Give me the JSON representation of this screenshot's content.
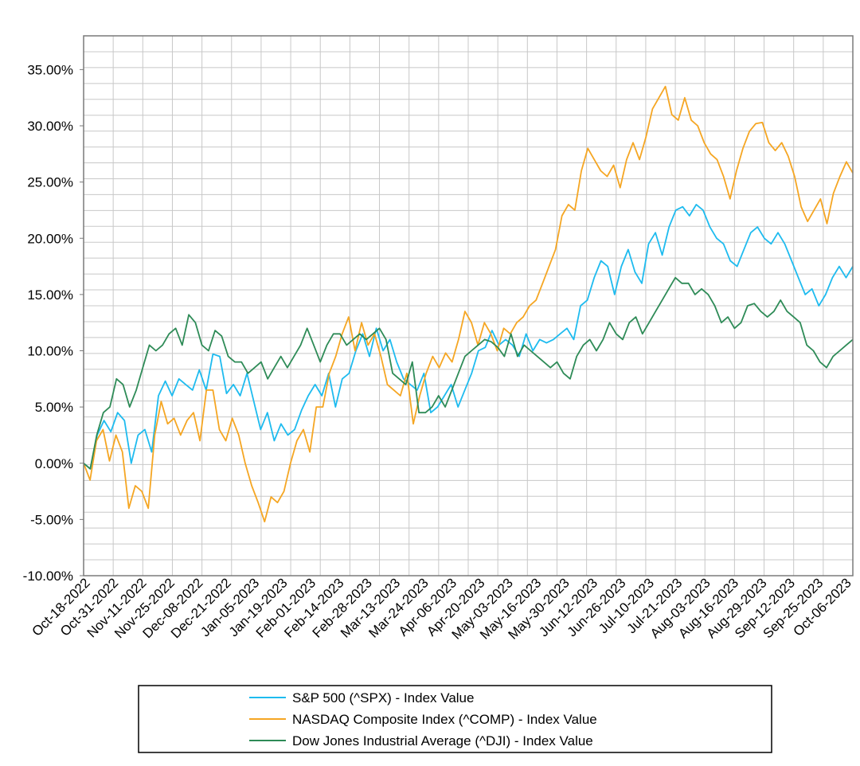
{
  "chart_data": {
    "type": "line",
    "title": "",
    "xlabel": "",
    "ylabel": "",
    "ylim": [
      -10,
      38
    ],
    "grid": true,
    "legend_position": "bottom",
    "y_ticks": [
      -10,
      -5,
      0,
      5,
      10,
      15,
      20,
      25,
      30,
      35
    ],
    "y_tick_labels": [
      "-10.00%",
      "-5.00%",
      "0.00%",
      "5.00%",
      "10.00%",
      "15.00%",
      "20.00%",
      "25.00%",
      "30.00%",
      "35.00%"
    ],
    "x_tick_labels": [
      "Oct-18-2022",
      "Oct-31-2022",
      "Nov-11-2022",
      "Nov-25-2022",
      "Dec-08-2022",
      "Dec-21-2022",
      "Jan-05-2023",
      "Jan-19-2023",
      "Feb-01-2023",
      "Feb-14-2023",
      "Feb-28-2023",
      "Mar-13-2023",
      "Mar-24-2023",
      "Apr-06-2023",
      "Apr-20-2023",
      "May-03-2023",
      "May-16-2023",
      "May-30-2023",
      "Jun-12-2023",
      "Jun-26-2023",
      "Jul-10-2023",
      "Jul-21-2023",
      "Aug-03-2023",
      "Aug-16-2023",
      "Aug-29-2023",
      "Sep-12-2023",
      "Sep-25-2023",
      "Oct-06-2023"
    ],
    "series": [
      {
        "name": "S&P 500 (^SPX) - Index Value",
        "color": "#1ebbef",
        "values": [
          0,
          -0.5,
          2.5,
          3.8,
          2.8,
          4.5,
          3.8,
          0,
          2.5,
          3,
          1,
          6,
          7.3,
          6,
          7.5,
          7,
          6.5,
          8.3,
          6.5,
          9.7,
          9.5,
          6.2,
          7,
          6,
          8,
          5.5,
          3,
          4.5,
          2,
          3.5,
          2.5,
          3,
          4.7,
          6,
          7,
          6,
          8,
          5,
          7.5,
          8,
          10,
          11.5,
          9.5,
          12,
          10,
          11,
          9,
          7.5,
          7,
          6.5,
          8,
          4.5,
          5,
          6,
          7,
          5,
          6.5,
          8,
          10,
          10.3,
          11.8,
          10.5,
          11,
          10.5,
          9.5,
          11.5,
          10,
          11,
          10.7,
          11,
          11.5,
          12,
          11,
          14,
          14.5,
          16.5,
          18,
          17.5,
          15,
          17.5,
          19,
          17,
          16,
          19.5,
          20.5,
          18.5,
          21,
          22.5,
          22.8,
          22,
          23,
          22.5,
          21,
          20,
          19.5,
          18,
          17.5,
          19,
          20.5,
          21,
          20,
          19.5,
          20.5,
          19.5,
          18,
          16.5,
          15,
          15.5,
          14,
          15,
          16.5,
          17.5,
          16.5,
          17.5
        ]
      },
      {
        "name": "NASDAQ Composite Index (^COMP) - Index Value",
        "color": "#f5a623",
        "values": [
          0,
          -1.5,
          2,
          3,
          0.2,
          2.5,
          1,
          -4,
          -2,
          -2.5,
          -4,
          2.5,
          5.5,
          3.5,
          4,
          2.5,
          3.8,
          4.5,
          2,
          6.5,
          6.5,
          3,
          2,
          4,
          2.5,
          0,
          -2,
          -3.5,
          -5.2,
          -3,
          -3.5,
          -2.5,
          0,
          2,
          3,
          1,
          5,
          5,
          8,
          9.5,
          11.5,
          13,
          10,
          12.5,
          10.5,
          11.5,
          9.5,
          7,
          6.5,
          6,
          8,
          3.5,
          6,
          8,
          9.5,
          8.5,
          9.8,
          9,
          11,
          13.5,
          12.5,
          10.5,
          12.5,
          11.5,
          10,
          12,
          11.5,
          12.5,
          13,
          14,
          14.5,
          16,
          17.5,
          19,
          22,
          23,
          22.5,
          26,
          28,
          27,
          26,
          25.5,
          26.5,
          24.5,
          27,
          28.5,
          27,
          29,
          31.5,
          32.5,
          33.5,
          31,
          30.5,
          32.5,
          30.5,
          30,
          28.5,
          27.5,
          27,
          25.5,
          23.5,
          26,
          28,
          29.5,
          30.2,
          30.3,
          28.5,
          27.8,
          28.5,
          27.3,
          25.5,
          22.8,
          21.5,
          22.5,
          23.5,
          21.3,
          24,
          25.5,
          26.8,
          25.8
        ]
      },
      {
        "name": "Dow Jones Industrial Average (^DJI) - Index Value",
        "color": "#2e8b57",
        "values": [
          0,
          -0.5,
          2.5,
          4.5,
          5,
          7.5,
          7,
          5,
          6.5,
          8.5,
          10.5,
          10,
          10.5,
          11.5,
          12,
          10.5,
          13.2,
          12.5,
          10.5,
          10,
          11.8,
          11.3,
          9.5,
          9,
          9,
          8,
          8.5,
          9,
          7.5,
          8.5,
          9.5,
          8.5,
          9.5,
          10.5,
          12,
          10.5,
          9,
          10.5,
          11.5,
          11.5,
          10.5,
          11,
          11.5,
          11,
          11.5,
          12,
          11,
          8,
          7.5,
          7,
          9,
          4.5,
          4.5,
          5,
          6,
          5,
          6.5,
          8,
          9.5,
          10,
          10.5,
          11,
          10.8,
          10.3,
          9.5,
          11.5,
          9.5,
          10.5,
          10,
          9.5,
          9,
          8.5,
          9,
          8,
          7.5,
          9.5,
          10.5,
          11,
          10,
          11,
          12.5,
          11.5,
          11,
          12.5,
          13,
          11.5,
          12.5,
          13.5,
          14.5,
          15.5,
          16.5,
          16,
          16,
          15,
          15.5,
          15,
          14,
          12.5,
          13,
          12,
          12.5,
          14,
          14.2,
          13.5,
          13,
          13.5,
          14.5,
          13.5,
          13,
          12.5,
          10.5,
          10,
          9,
          8.5,
          9.5,
          10,
          10.5,
          11
        ]
      }
    ]
  }
}
